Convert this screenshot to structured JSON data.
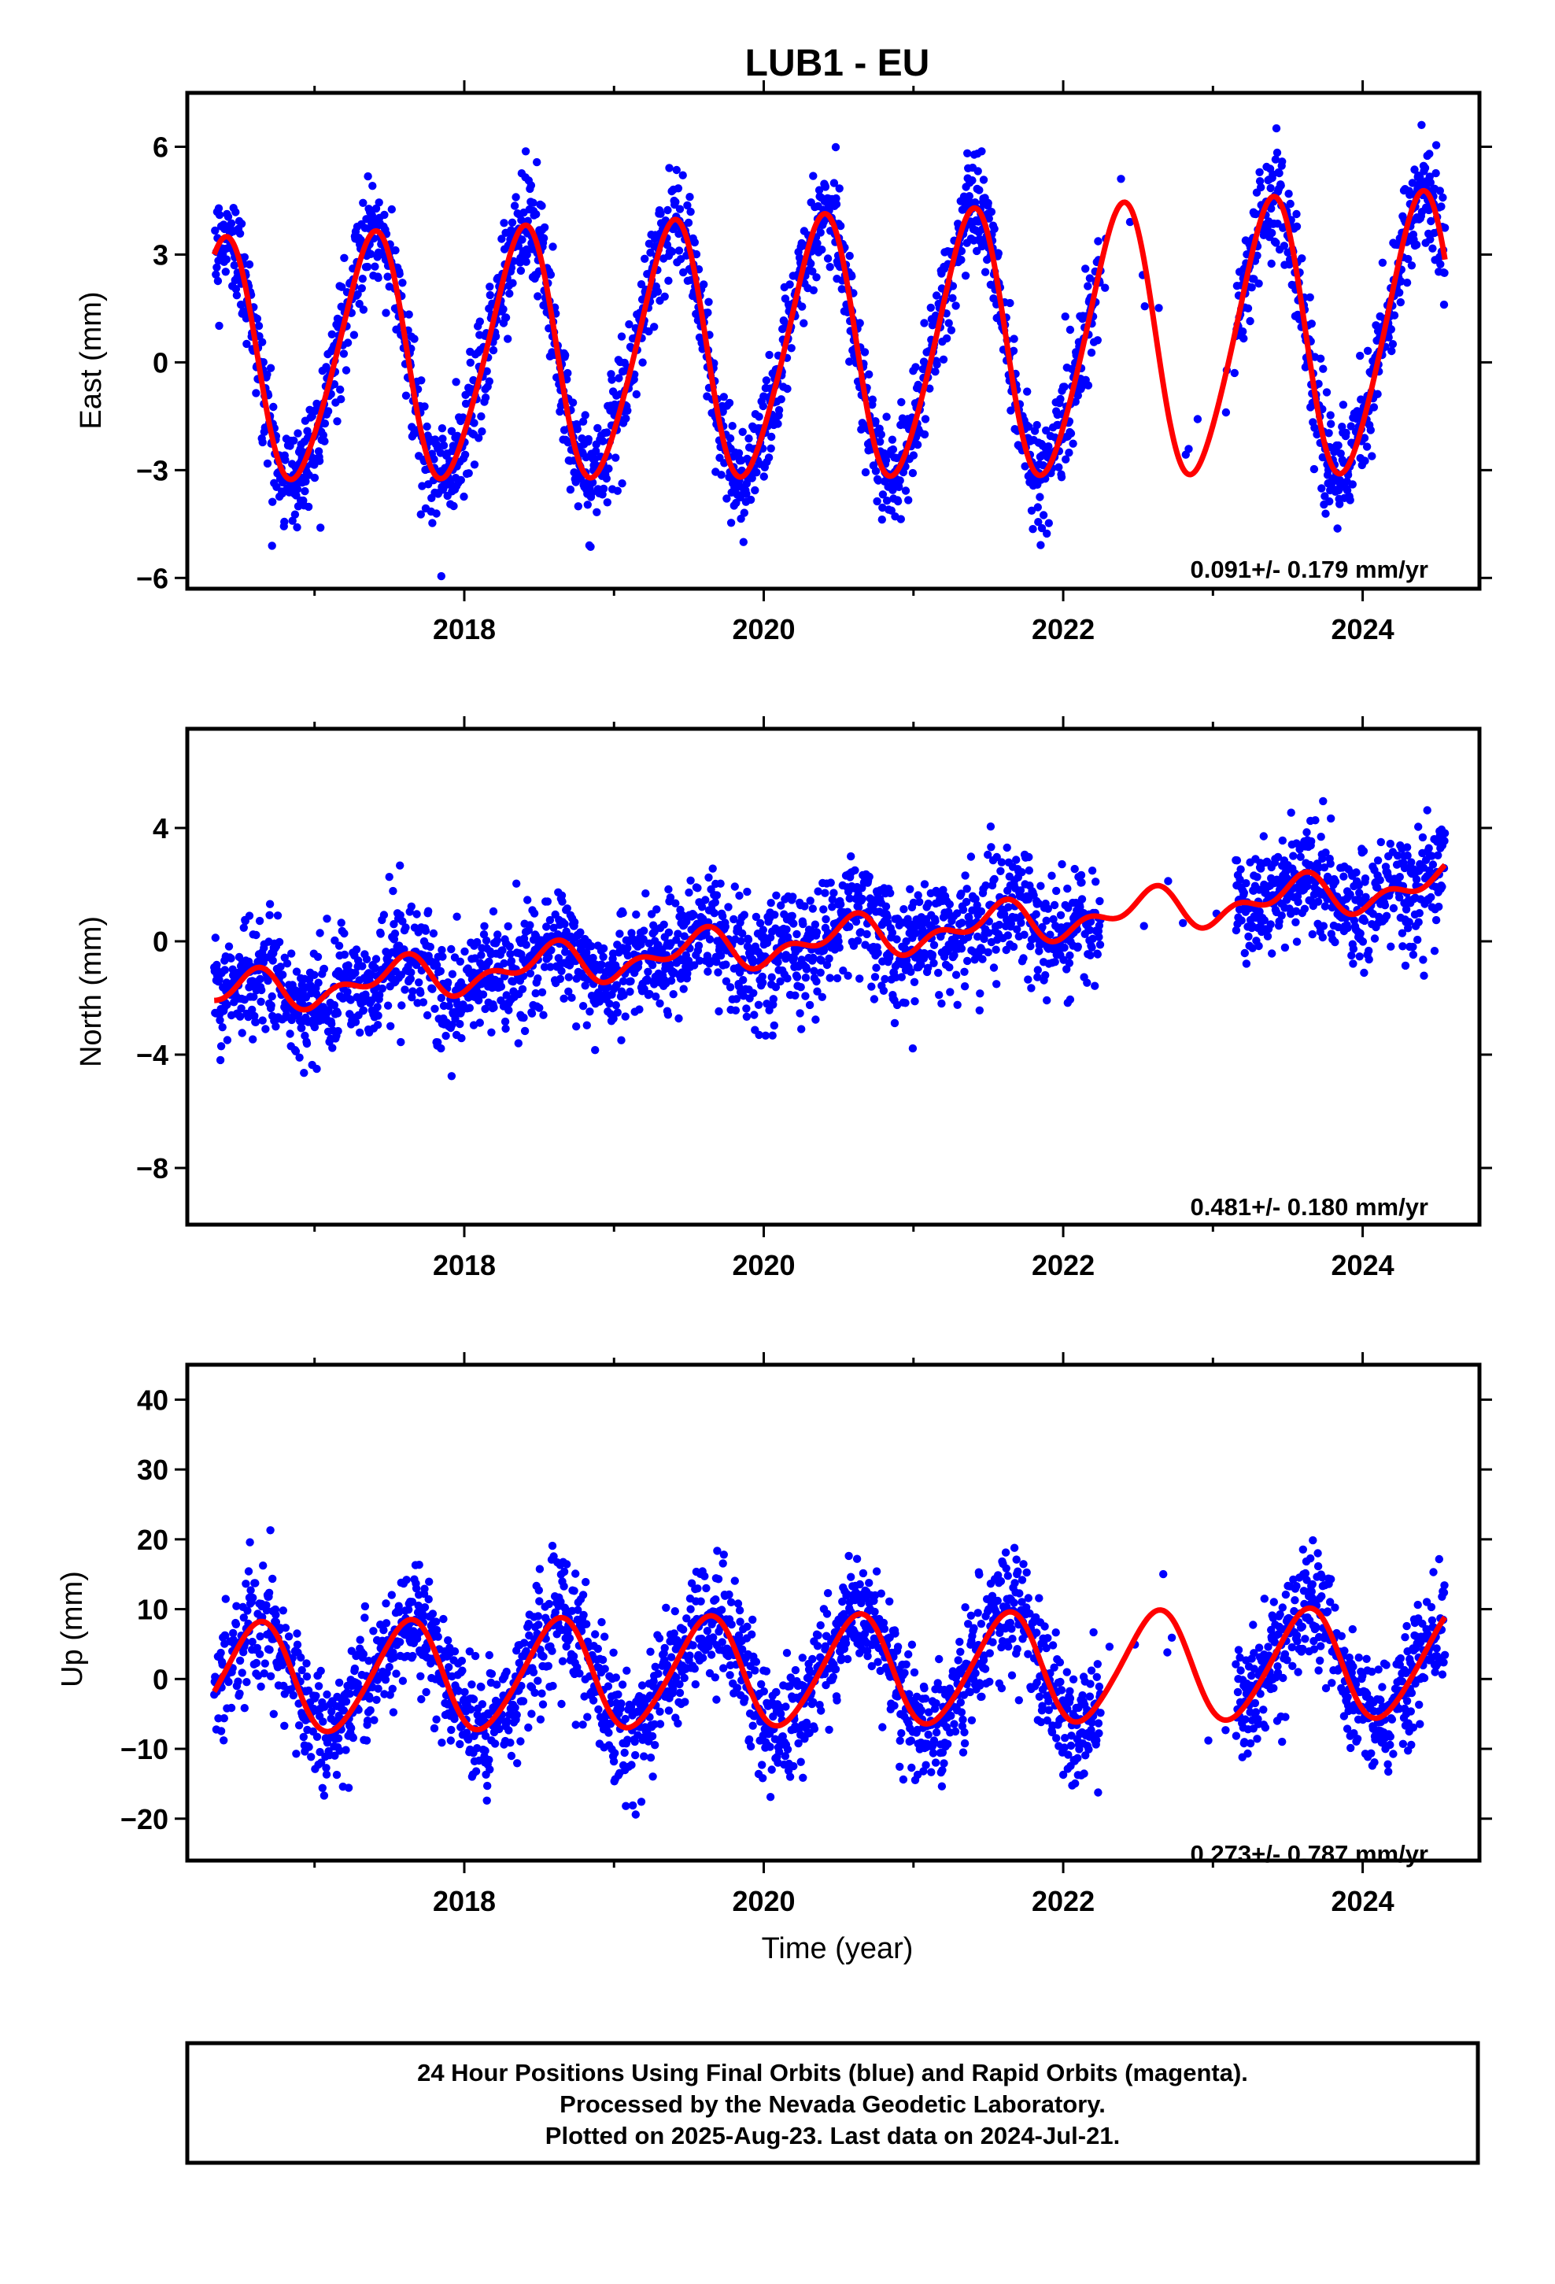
{
  "title": "LUB1 - EU",
  "xlabel": "Time (year)",
  "footer": {
    "line1": "24 Hour Positions Using Final Orbits (blue) and Rapid Orbits (magenta).",
    "line2": "Processed by the Nevada Geodetic Laboratory.",
    "line3": "Plotted on 2025-Aug-23. Last data on 2024-Jul-21."
  },
  "colors": {
    "points": "#0000ff",
    "model": "#ff0000",
    "frame": "#000000"
  },
  "chart_data": [
    {
      "type": "scatter",
      "component": "East",
      "ylabel": "East (mm)",
      "rate_text": "0.091+/- 0.179 mm/yr",
      "xlim": [
        2016.15,
        2024.78
      ],
      "ylim": [
        -6.3,
        7.5
      ],
      "x_ticks": [
        "2018",
        "2020",
        "2022",
        "2024"
      ],
      "y_ticks": [
        "6",
        "3",
        "0",
        "-3",
        "-6"
      ],
      "model": {
        "offset": 0.0,
        "trend": 0.091,
        "amp_annual": 3.3,
        "amp_annual_growth": 0.07,
        "peak_year_fraction": 0.38,
        "amp_semiannual": 0.4,
        "base_year": 2016.4
      },
      "data_span": [
        2016.33,
        2024.55
      ],
      "data_gap": [
        2022.25,
        2023.15
      ],
      "noise_sd": 0.75,
      "grid": false,
      "legend": "none"
    },
    {
      "type": "scatter",
      "component": "North",
      "ylabel": "North (mm)",
      "rate_text": "0.481+/- 0.180 mm/yr",
      "xlim": [
        2016.15,
        2024.78
      ],
      "ylim": [
        -10.0,
        7.5
      ],
      "x_ticks": [
        "2018",
        "2020",
        "2022",
        "2024"
      ],
      "y_ticks": [
        "4",
        "0",
        "-4",
        "-8"
      ],
      "model": {
        "offset": -1.9,
        "trend": 0.481,
        "amp_annual": 0.55,
        "amp_annual_growth": 0.0,
        "peak_year_fraction": 0.55,
        "amp_semiannual": 0.4,
        "base_year": 2016.4
      },
      "data_span": [
        2016.33,
        2024.55
      ],
      "data_gap": [
        2022.25,
        2023.15
      ],
      "noise_sd": 1.0,
      "grid": false,
      "legend": "none"
    },
    {
      "type": "scatter",
      "component": "Up",
      "ylabel": "Up (mm)",
      "rate_text": "0.273+/- 0.787 mm/yr",
      "xlim": [
        2016.15,
        2024.78
      ],
      "ylim": [
        -26,
        45
      ],
      "x_ticks": [
        "2018",
        "2020",
        "2022",
        "2024"
      ],
      "y_ticks": [
        "40",
        "30",
        "20",
        "10",
        "0",
        "-10",
        "-20"
      ],
      "model": {
        "offset": 0.0,
        "trend": 0.273,
        "amp_annual": 7.8,
        "amp_annual_growth": 0.0,
        "peak_year_fraction": 0.62,
        "amp_semiannual": 0.8,
        "base_year": 2016.4
      },
      "data_span": [
        2016.33,
        2024.55
      ],
      "data_gap": [
        2022.25,
        2023.15
      ],
      "noise_sd": 4.2,
      "grid": false,
      "legend": "none"
    }
  ]
}
